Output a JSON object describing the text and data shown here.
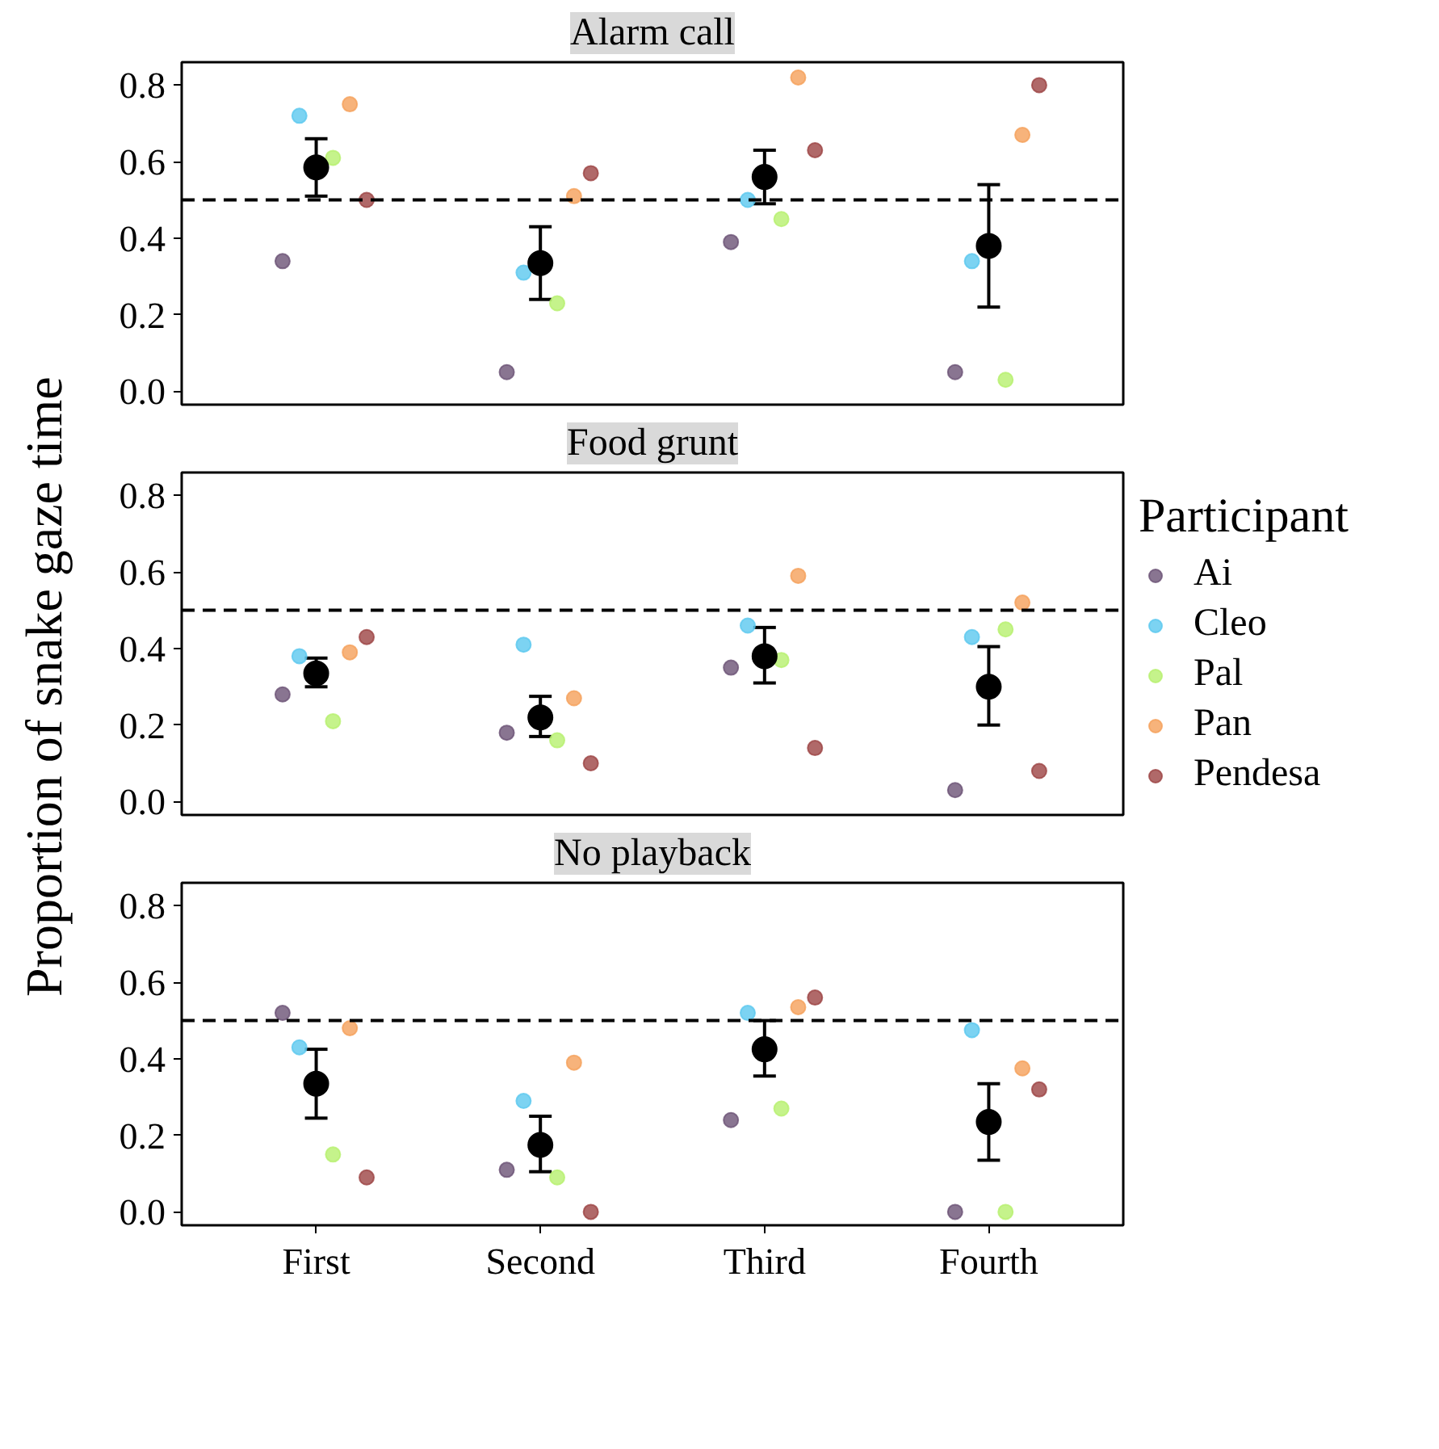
{
  "chart_data": [
    {
      "type": "scatter",
      "title": "Alarm call",
      "marker": "circle",
      "tick_labels": "y",
      "ylim": [
        -0.035,
        0.86
      ],
      "categories": [
        null,
        null,
        null,
        null
      ],
      "yticks": [
        {
          "value": 0,
          "label": "0.0"
        },
        {
          "value": 0.2,
          "label": "0.2"
        },
        {
          "value": 0.4,
          "label": "0.4"
        },
        {
          "value": 0.6,
          "label": "0.6"
        },
        {
          "value": 0.8,
          "label": "0.8"
        }
      ],
      "ref_lines": [
        {
          "axis": "y",
          "value": 0.5,
          "line_style": "dashed",
          "color": "#000000"
        }
      ],
      "series": [
        {
          "color": "#6b5376",
          "values": [
            0.34,
            0.05,
            0.39,
            0.05
          ]
        },
        {
          "color": "#5bc8ef",
          "values": [
            0.72,
            0.31,
            0.5,
            0.34
          ]
        },
        {
          "color": "#b6f06e",
          "values": [
            0.61,
            0.23,
            0.45,
            0.03
          ]
        },
        {
          "color": "#f5a05a",
          "values": [
            0.75,
            0.51,
            0.82,
            0.67
          ]
        },
        {
          "color": "#9c4444",
          "values": [
            0.5,
            0.57,
            0.63,
            0.8
          ]
        },
        {
          "color": "#000000",
          "values": [
            0.585,
            0.335,
            0.56,
            0.38
          ],
          "errors": [
            [
              0.51,
              0.66
            ],
            [
              0.24,
              0.43
            ],
            [
              0.49,
              0.63
            ],
            [
              0.22,
              0.54
            ]
          ]
        }
      ]
    },
    {
      "type": "scatter",
      "title": "Food grunt",
      "ylabel": "Proportion of snake gaze time",
      "marker": "circle",
      "tick_labels": "y",
      "legend": "right",
      "legend_title": "Participant",
      "ylim": [
        -0.035,
        0.86
      ],
      "categories": [
        null,
        null,
        null,
        null
      ],
      "yticks": [
        {
          "value": 0,
          "label": "0.0"
        },
        {
          "value": 0.2,
          "label": "0.2"
        },
        {
          "value": 0.4,
          "label": "0.4"
        },
        {
          "value": 0.6,
          "label": "0.6"
        },
        {
          "value": 0.8,
          "label": "0.8"
        }
      ],
      "ref_lines": [
        {
          "axis": "y",
          "value": 0.5,
          "line_style": "dashed",
          "color": "#000000"
        }
      ],
      "series": [
        {
          "name": "Ai",
          "color": "#6b5376",
          "values": [
            0.28,
            0.18,
            0.35,
            0.03
          ]
        },
        {
          "name": "Cleo",
          "color": "#5bc8ef",
          "values": [
            0.38,
            0.41,
            0.46,
            0.43
          ]
        },
        {
          "name": "Pal",
          "color": "#b6f06e",
          "values": [
            0.21,
            0.16,
            0.37,
            0.45
          ]
        },
        {
          "name": "Pan",
          "color": "#f5a05a",
          "values": [
            0.39,
            0.27,
            0.59,
            0.52
          ]
        },
        {
          "name": "Pendesa",
          "color": "#9c4444",
          "values": [
            0.43,
            0.1,
            0.14,
            0.08
          ]
        },
        {
          "color": "#000000",
          "values": [
            0.335,
            0.22,
            0.38,
            0.3
          ],
          "errors": [
            [
              0.3,
              0.375
            ],
            [
              0.17,
              0.275
            ],
            [
              0.31,
              0.455
            ],
            [
              0.2,
              0.405
            ]
          ]
        }
      ]
    },
    {
      "type": "scatter",
      "title": "No playback",
      "marker": "circle",
      "ylim": [
        -0.035,
        0.86
      ],
      "categories": [
        "First",
        "Second",
        "Third",
        "Fourth"
      ],
      "yticks": [
        {
          "value": 0,
          "label": "0.0"
        },
        {
          "value": 0.2,
          "label": "0.2"
        },
        {
          "value": 0.4,
          "label": "0.4"
        },
        {
          "value": 0.6,
          "label": "0.6"
        },
        {
          "value": 0.8,
          "label": "0.8"
        }
      ],
      "ref_lines": [
        {
          "axis": "y",
          "value": 0.5,
          "line_style": "dashed",
          "color": "#000000"
        }
      ],
      "series": [
        {
          "color": "#6b5376",
          "values": [
            0.52,
            0.11,
            0.24,
            0.0
          ]
        },
        {
          "color": "#5bc8ef",
          "values": [
            0.43,
            0.29,
            0.52,
            0.475
          ]
        },
        {
          "color": "#b6f06e",
          "values": [
            0.15,
            0.09,
            0.27,
            0.0
          ]
        },
        {
          "color": "#f5a05a",
          "values": [
            0.48,
            0.39,
            0.535,
            0.375
          ]
        },
        {
          "color": "#9c4444",
          "values": [
            0.09,
            0.0,
            0.56,
            0.32
          ]
        },
        {
          "color": "#000000",
          "values": [
            0.335,
            0.175,
            0.425,
            0.235
          ],
          "errors": [
            [
              0.245,
              0.425
            ],
            [
              0.105,
              0.25
            ],
            [
              0.355,
              0.5
            ],
            [
              0.135,
              0.335
            ]
          ]
        }
      ]
    }
  ]
}
